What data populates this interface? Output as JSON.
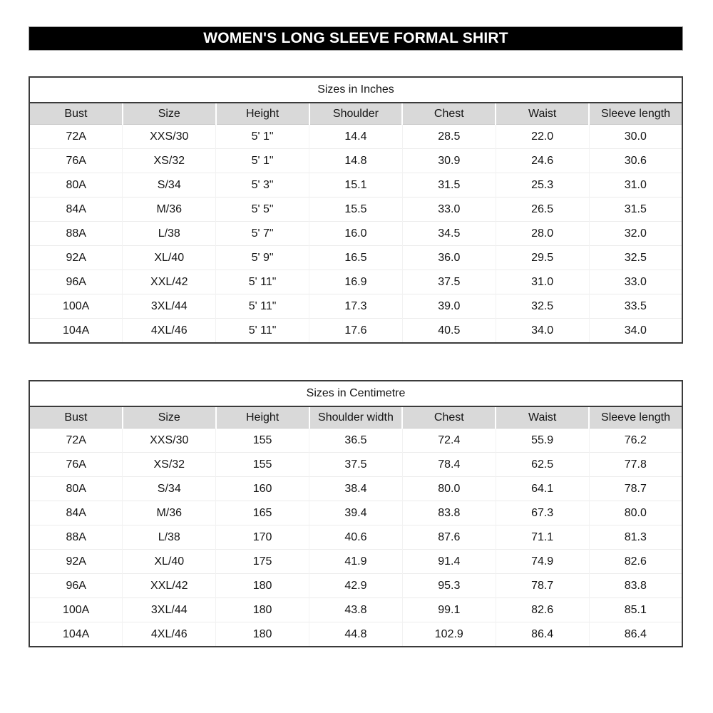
{
  "banner": {
    "title": "WOMEN'S LONG SLEEVE FORMAL SHIRT"
  },
  "colors": {
    "banner_bg": "#000000",
    "banner_text": "#ffffff",
    "header_row_bg": "#d9d9d9",
    "table_border_dark": "#3b3b3b",
    "grid_line_light": "#ececec"
  },
  "tables": [
    {
      "title": "Sizes in Inches",
      "headers": [
        "Bust",
        "Size",
        "Height",
        "Shoulder",
        "Chest",
        "Waist",
        "Sleeve length"
      ],
      "rows": [
        [
          "72A",
          "XXS/30",
          "5' 1\"",
          "14.4",
          "28.5",
          "22.0",
          "30.0"
        ],
        [
          "76A",
          "XS/32",
          "5' 1\"",
          "14.8",
          "30.9",
          "24.6",
          "30.6"
        ],
        [
          "80A",
          "S/34",
          "5' 3\"",
          "15.1",
          "31.5",
          "25.3",
          "31.0"
        ],
        [
          "84A",
          "M/36",
          "5' 5\"",
          "15.5",
          "33.0",
          "26.5",
          "31.5"
        ],
        [
          "88A",
          "L/38",
          "5' 7\"",
          "16.0",
          "34.5",
          "28.0",
          "32.0"
        ],
        [
          "92A",
          "XL/40",
          "5' 9\"",
          "16.5",
          "36.0",
          "29.5",
          "32.5"
        ],
        [
          "96A",
          "XXL/42",
          "5' 11\"",
          "16.9",
          "37.5",
          "31.0",
          "33.0"
        ],
        [
          "100A",
          "3XL/44",
          "5' 11\"",
          "17.3",
          "39.0",
          "32.5",
          "33.5"
        ],
        [
          "104A",
          "4XL/46",
          "5' 11\"",
          "17.6",
          "40.5",
          "34.0",
          "34.0"
        ]
      ]
    },
    {
      "title": "Sizes in Centimetre",
      "headers": [
        "Bust",
        "Size",
        "Height",
        "Shoulder width",
        "Chest",
        "Waist",
        "Sleeve length"
      ],
      "rows": [
        [
          "72A",
          "XXS/30",
          "155",
          "36.5",
          "72.4",
          "55.9",
          "76.2"
        ],
        [
          "76A",
          "XS/32",
          "155",
          "37.5",
          "78.4",
          "62.5",
          "77.8"
        ],
        [
          "80A",
          "S/34",
          "160",
          "38.4",
          "80.0",
          "64.1",
          "78.7"
        ],
        [
          "84A",
          "M/36",
          "165",
          "39.4",
          "83.8",
          "67.3",
          "80.0"
        ],
        [
          "88A",
          "L/38",
          "170",
          "40.6",
          "87.6",
          "71.1",
          "81.3"
        ],
        [
          "92A",
          "XL/40",
          "175",
          "41.9",
          "91.4",
          "74.9",
          "82.6"
        ],
        [
          "96A",
          "XXL/42",
          "180",
          "42.9",
          "95.3",
          "78.7",
          "83.8"
        ],
        [
          "100A",
          "3XL/44",
          "180",
          "43.8",
          "99.1",
          "82.6",
          "85.1"
        ],
        [
          "104A",
          "4XL/46",
          "180",
          "44.8",
          "102.9",
          "86.4",
          "86.4"
        ]
      ]
    }
  ]
}
